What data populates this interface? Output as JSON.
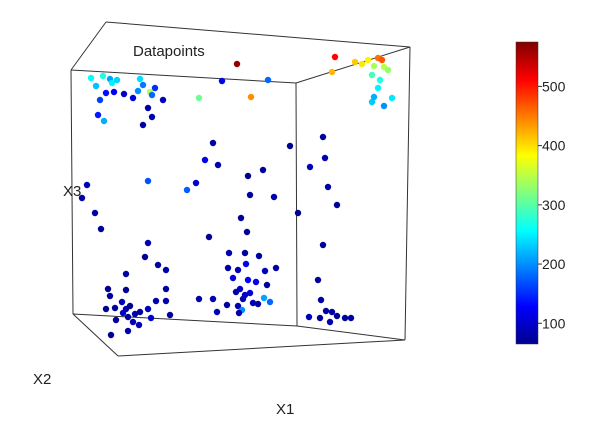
{
  "chart_data": {
    "type": "scatter",
    "title": "Datapoints",
    "axes": {
      "x": "X1",
      "y": "X2",
      "z": "X3"
    },
    "colorbar": {
      "colormap": "jet",
      "range": [
        65,
        575
      ],
      "ticks": [
        100,
        200,
        300,
        400,
        500
      ],
      "colors": [
        "#00008f",
        "#0000ff",
        "#00ffff",
        "#ffff00",
        "#ff0000",
        "#800000"
      ]
    },
    "points": [
      [
        237,
        64,
        565
      ],
      [
        335,
        57,
        510
      ],
      [
        378,
        58,
        455
      ],
      [
        382,
        60,
        470
      ],
      [
        332,
        72,
        420
      ],
      [
        355,
        62,
        410
      ],
      [
        368,
        60,
        390
      ],
      [
        374,
        66,
        340
      ],
      [
        384,
        67,
        350
      ],
      [
        362,
        64,
        395
      ],
      [
        388,
        70,
        330
      ],
      [
        372,
        75,
        290
      ],
      [
        380,
        80,
        270
      ],
      [
        378,
        88,
        250
      ],
      [
        372,
        102,
        230
      ],
      [
        384,
        106,
        200
      ],
      [
        374,
        97,
        215
      ],
      [
        392,
        98,
        245
      ],
      [
        251,
        97,
        440
      ],
      [
        150,
        92,
        345
      ],
      [
        199,
        98,
        310
      ],
      [
        91,
        78,
        255
      ],
      [
        96,
        86,
        225
      ],
      [
        103,
        76,
        270
      ],
      [
        110,
        79,
        210
      ],
      [
        112,
        83,
        250
      ],
      [
        117,
        80,
        235
      ],
      [
        140,
        79,
        240
      ],
      [
        143,
        85,
        190
      ],
      [
        152,
        95,
        180
      ],
      [
        138,
        91,
        200
      ],
      [
        155,
        88,
        150
      ],
      [
        100,
        100,
        160
      ],
      [
        104,
        121,
        215
      ],
      [
        98,
        115,
        140
      ],
      [
        106,
        93,
        135
      ],
      [
        114,
        92,
        120
      ],
      [
        124,
        94,
        100
      ],
      [
        163,
        100,
        95
      ],
      [
        133,
        98,
        110
      ],
      [
        143,
        125,
        85
      ],
      [
        152,
        117,
        90
      ],
      [
        148,
        108,
        85
      ],
      [
        222,
        81,
        120
      ],
      [
        268,
        80,
        180
      ],
      [
        213,
        143,
        85
      ],
      [
        205,
        160,
        120
      ],
      [
        218,
        165,
        90
      ],
      [
        263,
        170,
        80
      ],
      [
        290,
        146,
        75
      ],
      [
        323,
        137,
        80
      ],
      [
        310,
        167,
        95
      ],
      [
        325,
        158,
        90
      ],
      [
        248,
        176,
        70
      ],
      [
        148,
        181,
        170
      ],
      [
        187,
        190,
        175
      ],
      [
        196,
        183,
        105
      ],
      [
        250,
        195,
        80
      ],
      [
        274,
        197,
        85
      ],
      [
        241,
        218,
        80
      ],
      [
        87,
        185,
        95
      ],
      [
        82,
        198,
        85
      ],
      [
        101,
        229,
        80
      ],
      [
        95,
        213,
        85
      ],
      [
        209,
        237,
        75
      ],
      [
        328,
        187,
        85
      ],
      [
        337,
        205,
        80
      ],
      [
        298,
        213,
        75
      ],
      [
        323,
        245,
        80
      ],
      [
        247,
        232,
        75
      ],
      [
        148,
        243,
        90
      ],
      [
        158,
        265,
        80
      ],
      [
        166,
        270,
        85
      ],
      [
        145,
        257,
        75
      ],
      [
        166,
        289,
        80
      ],
      [
        229,
        253,
        85
      ],
      [
        245,
        253,
        80
      ],
      [
        228,
        268,
        85
      ],
      [
        238,
        270,
        90
      ],
      [
        265,
        271,
        95
      ],
      [
        276,
        268,
        85
      ],
      [
        259,
        256,
        80
      ],
      [
        246,
        264,
        120
      ],
      [
        267,
        285,
        80
      ],
      [
        236,
        292,
        85
      ],
      [
        243,
        299,
        90
      ],
      [
        240,
        289,
        100
      ],
      [
        250,
        293,
        105
      ],
      [
        233,
        278,
        110
      ],
      [
        248,
        280,
        130
      ],
      [
        256,
        282,
        120
      ],
      [
        126,
        274,
        85
      ],
      [
        108,
        289,
        75
      ],
      [
        110,
        296,
        80
      ],
      [
        126,
        290,
        75
      ],
      [
        122,
        302,
        95
      ],
      [
        115,
        308,
        80
      ],
      [
        126,
        309,
        85
      ],
      [
        130,
        306,
        75
      ],
      [
        128,
        317,
        80
      ],
      [
        133,
        322,
        90
      ],
      [
        135,
        314,
        85
      ],
      [
        116,
        320,
        80
      ],
      [
        106,
        309,
        75
      ],
      [
        123,
        313,
        100
      ],
      [
        140,
        312,
        80
      ],
      [
        148,
        309,
        95
      ],
      [
        151,
        318,
        105
      ],
      [
        139,
        325,
        90
      ],
      [
        128,
        331,
        85
      ],
      [
        111,
        335,
        75
      ],
      [
        156,
        301,
        90
      ],
      [
        166,
        301,
        85
      ],
      [
        170,
        315,
        80
      ],
      [
        199,
        299,
        85
      ],
      [
        213,
        299,
        90
      ],
      [
        217,
        312,
        95
      ],
      [
        227,
        305,
        80
      ],
      [
        238,
        306,
        90
      ],
      [
        245,
        295,
        100
      ],
      [
        258,
        304,
        85
      ],
      [
        264,
        298,
        210
      ],
      [
        270,
        302,
        180
      ],
      [
        242,
        310,
        200
      ],
      [
        239,
        313,
        85
      ],
      [
        253,
        303,
        90
      ],
      [
        318,
        280,
        80
      ],
      [
        321,
        300,
        85
      ],
      [
        326,
        311,
        80
      ],
      [
        332,
        312,
        85
      ],
      [
        337,
        316,
        75
      ],
      [
        345,
        318,
        80
      ],
      [
        351,
        318,
        85
      ],
      [
        309,
        317,
        95
      ],
      [
        320,
        318,
        80
      ],
      [
        330,
        322,
        90
      ]
    ]
  }
}
